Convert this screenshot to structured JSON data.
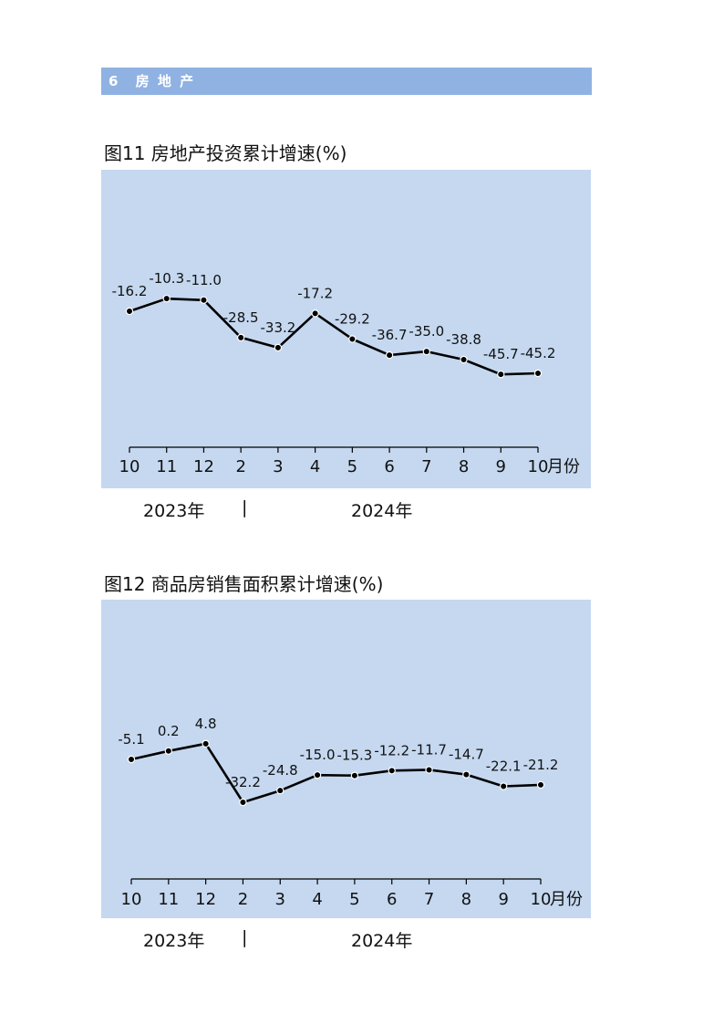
{
  "section": {
    "number": "6",
    "title": "房 地 产"
  },
  "charts": [
    {
      "title": "图11  房地产投资累计增速(%)",
      "unit_label": "月份",
      "year_labels": {
        "first": "2023年",
        "separator": "|",
        "second": "2024年"
      }
    },
    {
      "title": "图12  商品房销售面积累计增速(%)",
      "unit_label": "月份",
      "year_labels": {
        "first": "2023年",
        "separator": "|",
        "second": "2024年"
      }
    }
  ],
  "colors": {
    "section_bar": "#8fb2e3",
    "plot_bg": "#c5d8f0",
    "line": "#000000"
  },
  "chart_data": [
    {
      "type": "line",
      "title": "图11  房地产投资累计增速(%)",
      "categories": [
        "10",
        "11",
        "12",
        "2",
        "3",
        "4",
        "5",
        "6",
        "7",
        "8",
        "9",
        "10"
      ],
      "values": [
        -16.2,
        -10.3,
        -11.0,
        -28.5,
        -33.2,
        -17.2,
        -29.2,
        -36.7,
        -35.0,
        -38.8,
        -45.7,
        -45.2
      ],
      "value_labels": [
        "-16.2",
        "-10.3",
        "-11.0",
        "-28.5",
        "-33.2",
        "-17.2",
        "-29.2",
        "-36.7",
        "-35.0",
        "-38.8",
        "-45.7",
        "-45.2"
      ],
      "xlabel": "月份",
      "ylabel": ""
    },
    {
      "type": "line",
      "title": "图12  商品房销售面积累计增速(%)",
      "categories": [
        "10",
        "11",
        "12",
        "2",
        "3",
        "4",
        "5",
        "6",
        "7",
        "8",
        "9",
        "10"
      ],
      "values": [
        -5.1,
        0.2,
        4.8,
        -32.2,
        -24.8,
        -15.0,
        -15.3,
        -12.2,
        -11.7,
        -14.7,
        -22.1,
        -21.2
      ],
      "value_labels": [
        "-5.1",
        "0.2",
        "4.8",
        "-32.2",
        "-24.8",
        "-15.0",
        "-15.3",
        "-12.2",
        "-11.7",
        "-14.7",
        "-22.1",
        "-21.2"
      ],
      "xlabel": "月份",
      "ylabel": ""
    }
  ]
}
